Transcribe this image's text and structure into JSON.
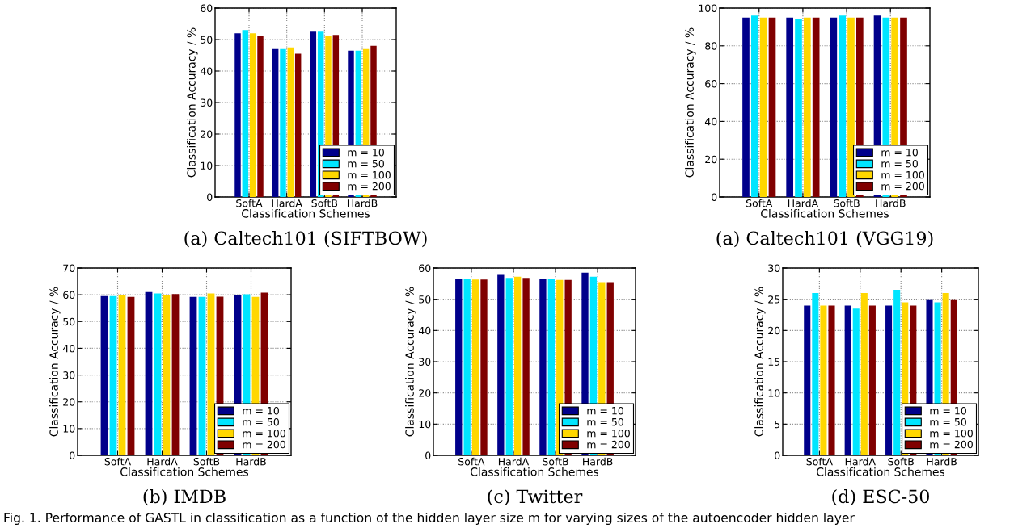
{
  "chart_data": [
    {
      "type": "bar",
      "title": "(a) Caltech101 (SIFTBOW)",
      "xlabel": "Classification Schemes",
      "ylabel": "Classification Accuracy / %",
      "categories": [
        "SoftA",
        "HardA",
        "SoftB",
        "HardB"
      ],
      "ylim": [
        0,
        60
      ],
      "yticks": [
        0,
        10,
        20,
        30,
        40,
        50,
        60
      ],
      "grid": true,
      "legend": "bottom right",
      "annotations": [
        "Fig. 1. Performance of GASTL in classification as a function of the hidden layer size m for varying sizes of the autoencoder hidden layer"
      ],
      "series": [
        {
          "name": "m = 10",
          "color": "#00008b",
          "values": [
            52,
            47,
            52.5,
            46.5
          ]
        },
        {
          "name": "m = 50",
          "color": "#00e5ff",
          "values": [
            53,
            47,
            52.5,
            46.5
          ]
        },
        {
          "name": "m = 100",
          "color": "#ffd700",
          "values": [
            52,
            47.5,
            51,
            47
          ]
        },
        {
          "name": "m = 200",
          "color": "#800000",
          "values": [
            51,
            45.5,
            51.5,
            48
          ]
        }
      ]
    },
    {
      "type": "bar",
      "title": "(a) Caltech101 (VGG19)",
      "xlabel": "Classification Schemes",
      "ylabel": "Classification Accuracy / %",
      "categories": [
        "SoftA",
        "HardA",
        "SoftB",
        "HardB"
      ],
      "ylim": [
        0,
        100
      ],
      "yticks": [
        0,
        20,
        40,
        60,
        80,
        100
      ],
      "grid": true,
      "legend": "bottom right",
      "series": [
        {
          "name": "m = 10",
          "color": "#00008b",
          "values": [
            95,
            95,
            95,
            96
          ]
        },
        {
          "name": "m = 50",
          "color": "#00e5ff",
          "values": [
            96,
            94,
            96,
            95
          ]
        },
        {
          "name": "m = 100",
          "color": "#ffd700",
          "values": [
            95,
            95,
            95,
            95
          ]
        },
        {
          "name": "m = 200",
          "color": "#800000",
          "values": [
            95,
            95,
            95,
            95
          ]
        }
      ]
    },
    {
      "type": "bar",
      "title": "(b) IMDB",
      "xlabel": "Classification Schemes",
      "ylabel": "Classification Accuracy / %",
      "categories": [
        "SoftA",
        "HardA",
        "SoftB",
        "HardB"
      ],
      "ylim": [
        0,
        70
      ],
      "yticks": [
        0,
        10,
        20,
        30,
        40,
        50,
        60,
        70
      ],
      "grid": true,
      "legend": "bottom right",
      "series": [
        {
          "name": "m = 10",
          "color": "#00008b",
          "values": [
            59.5,
            61,
            59.2,
            60
          ]
        },
        {
          "name": "m = 50",
          "color": "#00e5ff",
          "values": [
            59.5,
            60.5,
            59.2,
            60.2
          ]
        },
        {
          "name": "m = 100",
          "color": "#ffd700",
          "values": [
            60,
            59.8,
            60.5,
            59.2
          ]
        },
        {
          "name": "m = 200",
          "color": "#800000",
          "values": [
            59.2,
            60.3,
            59.3,
            60.8
          ]
        }
      ]
    },
    {
      "type": "bar",
      "title": "(c) Twitter",
      "xlabel": "Classification Schemes",
      "ylabel": "Classification Accuracy / %",
      "categories": [
        "SoftA",
        "HardA",
        "SoftB",
        "HardB"
      ],
      "ylim": [
        0,
        60
      ],
      "yticks": [
        0,
        10,
        20,
        30,
        40,
        50,
        60
      ],
      "grid": true,
      "legend": "bottom right",
      "series": [
        {
          "name": "m = 10",
          "color": "#00008b",
          "values": [
            56.5,
            57.8,
            56.5,
            58.5
          ]
        },
        {
          "name": "m = 50",
          "color": "#00e5ff",
          "values": [
            56.5,
            56.8,
            56.5,
            57.2
          ]
        },
        {
          "name": "m = 100",
          "color": "#ffd700",
          "values": [
            56.3,
            57.2,
            56.2,
            55.5
          ]
        },
        {
          "name": "m = 200",
          "color": "#800000",
          "values": [
            56.3,
            56.8,
            56.2,
            55.5
          ]
        }
      ]
    },
    {
      "type": "bar",
      "title": "(d) ESC-50",
      "xlabel": "Classification Schemes",
      "ylabel": "Classification Accuracy / %",
      "categories": [
        "SoftA",
        "HardA",
        "SoftB",
        "HardB"
      ],
      "ylim": [
        0,
        30
      ],
      "yticks": [
        0,
        5,
        10,
        15,
        20,
        25,
        30
      ],
      "grid": true,
      "legend": "bottom right",
      "series": [
        {
          "name": "m = 10",
          "color": "#00008b",
          "values": [
            24,
            24,
            24,
            25
          ]
        },
        {
          "name": "m = 50",
          "color": "#00e5ff",
          "values": [
            26,
            23.5,
            26.5,
            24.5
          ]
        },
        {
          "name": "m = 100",
          "color": "#ffd700",
          "values": [
            24,
            26,
            24.5,
            26
          ]
        },
        {
          "name": "m = 200",
          "color": "#800000",
          "values": [
            24,
            24,
            24,
            25
          ]
        }
      ]
    }
  ]
}
